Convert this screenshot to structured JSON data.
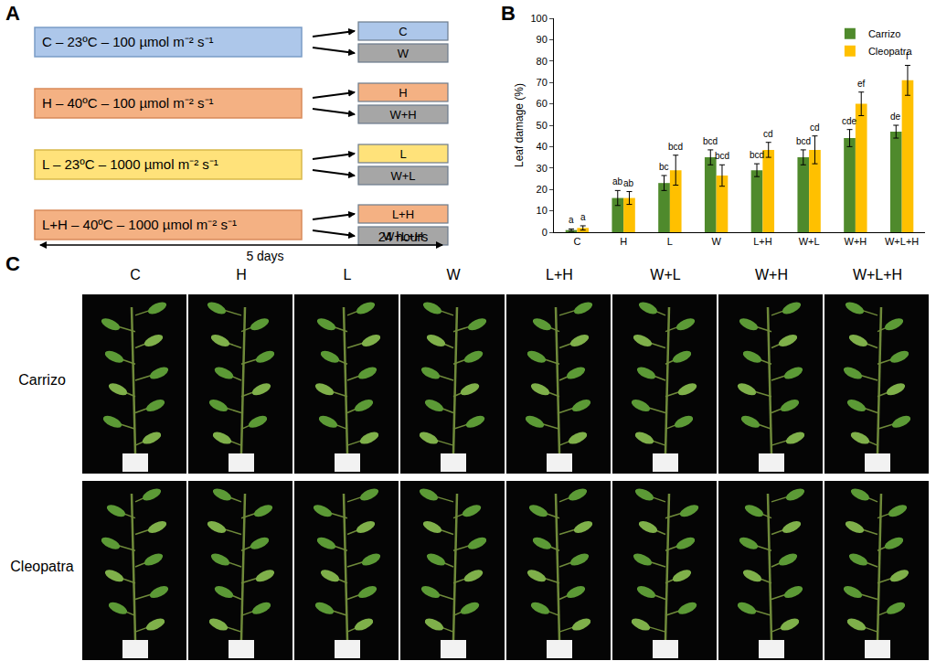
{
  "panel_labels": [
    "A",
    "B",
    "C"
  ],
  "panel_a": {
    "conditions": [
      {
        "text": "C – 23ºC – 100 µmol m⁻² s⁻¹",
        "color": "#adc7ea",
        "border": "#7a9cc6",
        "outcomes": [
          {
            "text": "C",
            "color": "#adc7ea"
          },
          {
            "text": "W",
            "color": "#a6a6a6"
          }
        ]
      },
      {
        "text": "H – 40ºC – 100 µmol m⁻² s⁻¹",
        "color": "#f4b183",
        "border": "#d98a5a",
        "outcomes": [
          {
            "text": "H",
            "color": "#f4b183"
          },
          {
            "text": "W+H",
            "color": "#a6a6a6"
          }
        ]
      },
      {
        "text": "L – 23ºC – 1000 µmol m⁻² s⁻¹",
        "color": "#ffe27a",
        "border": "#d9b84a",
        "outcomes": [
          {
            "text": "L",
            "color": "#ffe27a"
          },
          {
            "text": "W+L",
            "color": "#a6a6a6"
          }
        ]
      },
      {
        "text": "L+H – 40ºC – 1000 µmol m⁻² s⁻¹",
        "color": "#f4b183",
        "border": "#d98a5a",
        "outcomes": [
          {
            "text": "L+H",
            "color": "#f4b183"
          },
          {
            "text": "W+L+H",
            "color": "#a6a6a6"
          }
        ]
      }
    ],
    "duration_long": "5 days",
    "duration_short": "24 hours"
  },
  "chart_data": {
    "type": "bar",
    "y_label": "Leaf damage (%)",
    "categories": [
      "C",
      "H",
      "L",
      "W",
      "L+H",
      "W+L",
      "W+H",
      "W+L+H"
    ],
    "series": [
      {
        "name": "Carrizo",
        "color": "#4f8a2c",
        "values": [
          1,
          16,
          23,
          35,
          29,
          35,
          44,
          47
        ],
        "error": [
          0.5,
          3.5,
          3.5,
          3.5,
          3,
          3.5,
          4,
          3
        ],
        "letters": [
          "a",
          "ab",
          "bc",
          "bcd",
          "bcd",
          "bcd",
          "cde",
          "de"
        ]
      },
      {
        "name": "Cleopatra",
        "color": "#ffc000",
        "values": [
          2,
          16,
          29,
          26.5,
          38.5,
          38.5,
          60,
          71
        ],
        "error": [
          1,
          3,
          7,
          5,
          3.5,
          6.5,
          5.5,
          7
        ],
        "letters": [
          "a",
          "ab",
          "bcd",
          "bcd",
          "cd",
          "cd",
          "ef",
          "f"
        ]
      }
    ],
    "ylim": [
      0,
      100
    ],
    "yticks": [
      0,
      10,
      20,
      30,
      40,
      50,
      60,
      70,
      80,
      90,
      100
    ],
    "grid": false,
    "legend": "top right"
  },
  "panel_c": {
    "columns": [
      "C",
      "H",
      "L",
      "W",
      "L+H",
      "W+L",
      "W+H",
      "W+L+H"
    ],
    "rows": [
      "Carrizo",
      "Cleopatra"
    ]
  }
}
